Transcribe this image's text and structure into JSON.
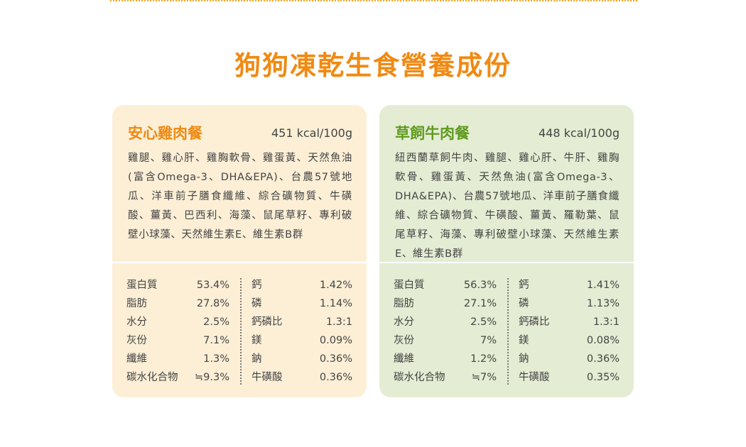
{
  "page": {
    "title": "狗狗凍乾生食營養成份"
  },
  "cards": [
    {
      "name": "安心雞肉餐",
      "kcal": "451 kcal/100g",
      "ingredients": "雞腿、雞心肝、雞胸軟骨、雞蛋黃、天然魚油(富含Omega-3、DHA&EPA)、台農57號地瓜、洋車前子膳食纖維、綜合礦物質、牛磺酸、薑黃、巴西利、海藻、鼠尾草籽、專利破壁小球藻、天然維生素E、維生素B群",
      "nutrients_left": [
        {
          "label": "蛋白質",
          "value": "53.4%"
        },
        {
          "label": "脂肪",
          "value": "27.8%"
        },
        {
          "label": "水分",
          "value": "2.5%"
        },
        {
          "label": "灰份",
          "value": "7.1%"
        },
        {
          "label": "纖維",
          "value": "1.3%"
        },
        {
          "label": "碳水化合物",
          "value": "≒9.3%"
        }
      ],
      "nutrients_right": [
        {
          "label": "鈣",
          "value": "1.42%"
        },
        {
          "label": "磷",
          "value": "1.14%"
        },
        {
          "label": "鈣磷比",
          "value": "1.3:1"
        },
        {
          "label": "鎂",
          "value": "0.09%"
        },
        {
          "label": "鈉",
          "value": "0.36%"
        },
        {
          "label": "牛磺酸",
          "value": "0.36%"
        }
      ]
    },
    {
      "name": "草飼牛肉餐",
      "kcal": "448 kcal/100g",
      "ingredients": "紐西蘭草飼牛肉、雞腿、雞心肝、牛肝、雞胸軟骨、雞蛋黃、天然魚油(富含Omega-3、DHA&EPA)、台農57號地瓜、洋車前子膳食纖維、綜合礦物質、牛磺酸、薑黃、羅勒葉、鼠尾草籽、海藻、專利破壁小球藻、天然維生素E、維生素B群",
      "nutrients_left": [
        {
          "label": "蛋白質",
          "value": "56.3%"
        },
        {
          "label": "脂肪",
          "value": "27.1%"
        },
        {
          "label": "水分",
          "value": "2.5%"
        },
        {
          "label": "灰份",
          "value": "7%"
        },
        {
          "label": "纖維",
          "value": "1.2%"
        },
        {
          "label": "碳水化合物",
          "value": "≒7%"
        }
      ],
      "nutrients_right": [
        {
          "label": "鈣",
          "value": "1.41%"
        },
        {
          "label": "磷",
          "value": "1.13%"
        },
        {
          "label": "鈣磷比",
          "value": "1.3:1"
        },
        {
          "label": "鎂",
          "value": "0.08%"
        },
        {
          "label": "鈉",
          "value": "0.36%"
        },
        {
          "label": "牛磺酸",
          "value": "0.35%"
        }
      ]
    }
  ]
}
